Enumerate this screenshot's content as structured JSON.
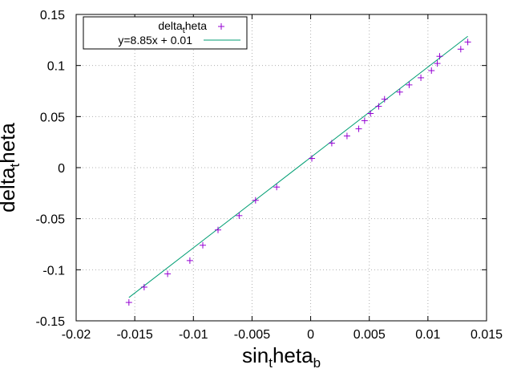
{
  "chart_data": {
    "type": "scatter",
    "xlabel_main": "sin",
    "xlabel_sub1": "t",
    "xlabel_mid": "heta",
    "xlabel_sub2": "b",
    "ylabel_main": "delta",
    "ylabel_sub": "t",
    "ylabel_end": "heta",
    "xlim": [
      -0.02,
      0.015
    ],
    "ylim": [
      -0.15,
      0.15
    ],
    "xticks": [
      -0.02,
      -0.015,
      -0.01,
      -0.005,
      0,
      0.005,
      0.01,
      0.015
    ],
    "xtick_labels": [
      "-0.02",
      "-0.015",
      "-0.01",
      "-0.005",
      "0",
      "0.005",
      "0.01",
      "0.015"
    ],
    "yticks": [
      -0.15,
      -0.1,
      -0.05,
      0,
      0.05,
      0.1,
      0.15
    ],
    "ytick_labels": [
      "-0.15",
      "-0.1",
      "-0.05",
      "0",
      "0.05",
      "0.1",
      "0.15"
    ],
    "grid": true,
    "legend_position": "top-left",
    "series": [
      {
        "name_main": "delta",
        "name_sub": "t",
        "name_end": "heta",
        "kind": "points",
        "color": "#9400d3",
        "points": [
          [
            -0.0155,
            -0.132
          ],
          [
            -0.0142,
            -0.117
          ],
          [
            -0.0122,
            -0.104
          ],
          [
            -0.0103,
            -0.091
          ],
          [
            -0.0092,
            -0.076
          ],
          [
            -0.0079,
            -0.061
          ],
          [
            -0.0061,
            -0.047
          ],
          [
            -0.0047,
            -0.032
          ],
          [
            -0.0029,
            -0.019
          ],
          [
            0.0001,
            0.009
          ],
          [
            0.0018,
            0.024
          ],
          [
            0.0031,
            0.031
          ],
          [
            0.0041,
            0.038
          ],
          [
            0.0046,
            0.046
          ],
          [
            0.0051,
            0.053
          ],
          [
            0.0058,
            0.06
          ],
          [
            0.0063,
            0.067
          ],
          [
            0.0076,
            0.074
          ],
          [
            0.0084,
            0.081
          ],
          [
            0.0094,
            0.088
          ],
          [
            0.0103,
            0.095
          ],
          [
            0.0108,
            0.102
          ],
          [
            0.011,
            0.109
          ],
          [
            0.0128,
            0.116
          ],
          [
            0.0134,
            0.123
          ]
        ]
      },
      {
        "name": "y=8.85x + 0.01",
        "kind": "line",
        "color": "#009e73",
        "slope": 8.85,
        "intercept": 0.01,
        "x_range": [
          -0.0155,
          0.0134
        ]
      }
    ]
  }
}
